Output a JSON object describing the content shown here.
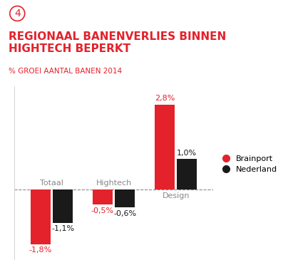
{
  "panel_number": "4",
  "chart_data": {
    "type": "bar",
    "title": "REGIONAAL BANENVERLIES BINNEN HIGHTECH BEPERKT",
    "subtitle": "% GROEI AANTAL BANEN 2014",
    "categories": [
      "Totaal",
      "Hightech",
      "Design"
    ],
    "series": [
      {
        "name": "Brainport",
        "color": "#e3222b",
        "values": [
          -1.8,
          -0.5,
          2.8
        ],
        "value_labels": [
          "-1,8%",
          "-0,5%",
          "2,8%"
        ]
      },
      {
        "name": "Nederland",
        "color": "#1a1a1a",
        "values": [
          -1.1,
          -0.6,
          1.0
        ],
        "value_labels": [
          "-1,1%",
          "-0,6%",
          "1,0%"
        ]
      }
    ],
    "ylim": [
      -2.3,
      3.4
    ],
    "yticks": [
      0
    ],
    "grid": true,
    "data_labels": true,
    "tick_labels": false,
    "legend": "right"
  }
}
